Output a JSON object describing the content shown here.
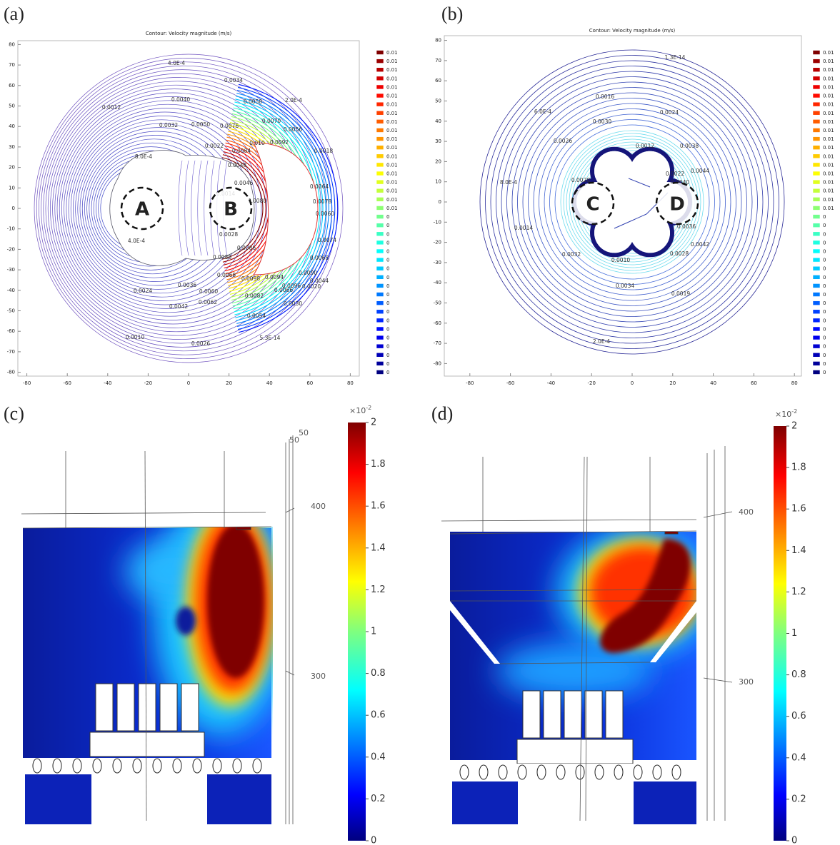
{
  "panels": [
    {
      "label": "(a)",
      "title": "Contour: Velocity magnitude (m/s)",
      "xticks": [
        -80,
        -60,
        -40,
        -20,
        0,
        20,
        40,
        60,
        80
      ],
      "yticks": [
        80,
        70,
        60,
        50,
        40,
        30,
        20,
        10,
        0,
        -10,
        -20,
        -30,
        -40,
        -50,
        -60,
        -70,
        -80
      ],
      "colorbar": [
        0.01,
        0.01,
        0.01,
        0.01,
        0.01,
        0.01,
        0.01,
        0.01,
        0.01,
        0.01,
        0.01,
        0.01,
        0.01,
        0.01,
        0.01,
        0.01,
        0.01,
        0.01,
        0.01,
        0,
        0,
        0,
        0,
        0,
        0,
        0,
        0,
        0,
        0,
        0,
        0,
        0,
        0,
        0,
        0,
        0,
        0,
        0
      ],
      "contour_labels": [
        "4.0E-4",
        "0.0034",
        "0.0012",
        "0.0040",
        "0.0058",
        "2.0E-4",
        "0.0032",
        "0.0050",
        "0.0076",
        "0.0070",
        "0.0056",
        "0.0022",
        "0.0084",
        "0.010",
        "0.0092",
        "0.0018",
        "8.0E-4",
        "0.0048",
        "0.0064",
        "0.0046",
        "0.0078",
        "0.0014",
        "0.0080",
        "0.0060",
        "0.0074",
        "0.0028",
        "0.0068",
        "4.0E-4",
        "0.0086",
        "0.0090",
        "0.0044",
        "0.0088",
        "0.0096",
        "0.0068",
        "0.0098",
        "0.0094",
        "0.0024",
        "0.0036",
        "0.0060",
        "0.0066",
        "0.0020",
        "0.0082",
        "0.0062",
        "0.0042",
        "0.0030",
        "0.0054",
        "0.0010",
        "0.0026",
        "5.3E-14"
      ],
      "markers": [
        "A",
        "B"
      ]
    },
    {
      "label": "(b)",
      "title": "Contour: Velocity magnitude (m/s)",
      "xticks": [
        -80,
        -60,
        -40,
        -20,
        0,
        20,
        40,
        60,
        80
      ],
      "yticks": [
        80,
        70,
        60,
        50,
        40,
        30,
        20,
        10,
        0,
        -10,
        -20,
        -30,
        -40,
        -50,
        -60,
        -70,
        -80
      ],
      "colorbar": [
        0.01,
        0.01,
        0.01,
        0.01,
        0.01,
        0.01,
        0.01,
        0.01,
        0.01,
        0.01,
        0.01,
        0.01,
        0.01,
        0.01,
        0.01,
        0.01,
        0.01,
        0.01,
        0.01,
        0,
        0,
        0,
        0,
        0,
        0,
        0,
        0,
        0,
        0,
        0,
        0,
        0,
        0,
        0,
        0,
        0,
        0,
        0
      ],
      "contour_labels": [
        "1.3E-14",
        "0.0016",
        "6.0E-4",
        "0.0024",
        "0.0030",
        "0.0026",
        "0.0012",
        "0.0038",
        "0.0022",
        "0.0044",
        "8.0E-4",
        "0.0040",
        "0.0020",
        "0.0014",
        "0.0036",
        "0.0042",
        "0.0032",
        "0.0028",
        "0.0010",
        "0.0034",
        "0.0019",
        "2.0E-4"
      ],
      "markers": [
        "C",
        "D"
      ]
    },
    {
      "label": "(c)",
      "colorbar_unit": "×10",
      "colorbar_exponent": "-2",
      "colorbar_ticks": [
        0,
        0.2,
        0.4,
        0.6,
        0.8,
        1,
        1.2,
        1.4,
        1.6,
        1.8,
        2
      ],
      "annotations": [
        "50",
        "50",
        "400",
        "300"
      ]
    },
    {
      "label": "(d)",
      "colorbar_unit": "×10",
      "colorbar_exponent": "-2",
      "colorbar_ticks": [
        0,
        0.2,
        0.4,
        0.6,
        0.8,
        1,
        1.2,
        1.4,
        1.6,
        1.8,
        2
      ],
      "annotations": [
        "400",
        "300"
      ]
    }
  ]
}
